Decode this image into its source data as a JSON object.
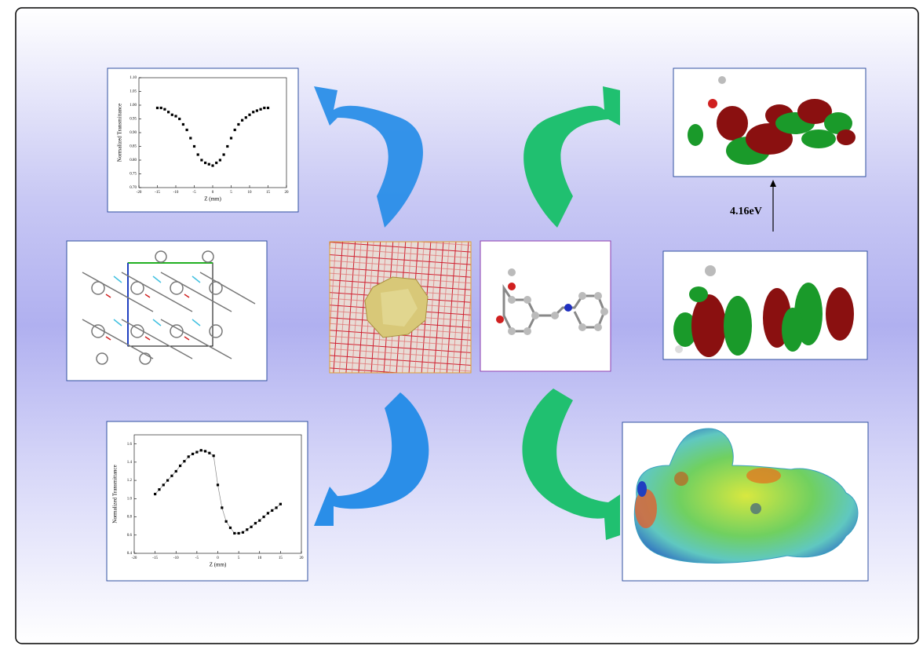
{
  "chart_data": [
    {
      "type": "scatter",
      "xlabel": "Z (mm)",
      "ylabel": "Normalized Transmittance",
      "color": "#000000",
      "x": [
        -15,
        -14,
        -13,
        -12,
        -11,
        -10,
        -9,
        -8,
        -7,
        -6,
        -5,
        -4,
        -3,
        -2,
        -1,
        0,
        1,
        2,
        3,
        4,
        5,
        6,
        7,
        8,
        9,
        10,
        11,
        12,
        13,
        14,
        15
      ],
      "values": [
        0.99,
        0.99,
        0.985,
        0.975,
        0.965,
        0.96,
        0.95,
        0.93,
        0.91,
        0.88,
        0.85,
        0.82,
        0.8,
        0.79,
        0.785,
        0.78,
        0.79,
        0.8,
        0.82,
        0.85,
        0.88,
        0.91,
        0.93,
        0.945,
        0.955,
        0.965,
        0.975,
        0.98,
        0.985,
        0.99,
        0.99
      ],
      "xlim": [
        -20,
        20
      ],
      "xticks": [
        -20,
        -15,
        -10,
        -5,
        0,
        5,
        10,
        15,
        20
      ],
      "ylim": [
        0.7,
        1.1
      ],
      "yticks": [
        {
          "value": 0.7,
          "label": "0.70"
        },
        {
          "value": 0.75,
          "label": "0.75"
        },
        {
          "value": 0.8,
          "label": "0.80"
        },
        {
          "value": 0.85,
          "label": "0.85"
        },
        {
          "value": 0.9,
          "label": "0.90"
        },
        {
          "value": 0.95,
          "label": "0.95"
        },
        {
          "value": 1.0,
          "label": "1.00"
        },
        {
          "value": 1.05,
          "label": "1.05"
        },
        {
          "value": 1.1,
          "label": "1.10"
        }
      ]
    },
    {
      "type": "line",
      "xlabel": "Z (mm)",
      "ylabel": "Normalized Transmittance",
      "color": "#000000",
      "line_color": "#888888",
      "markers": true,
      "x": [
        -15,
        -14,
        -13,
        -12,
        -11,
        -10,
        -9,
        -8,
        -7,
        -6,
        -5,
        -4,
        -3,
        -2,
        -1,
        0,
        1,
        2,
        3,
        4,
        5,
        6,
        7,
        8,
        9,
        10,
        11,
        12,
        13,
        14,
        15
      ],
      "values": [
        1.05,
        1.1,
        1.15,
        1.2,
        1.25,
        1.3,
        1.36,
        1.41,
        1.46,
        1.49,
        1.51,
        1.53,
        1.52,
        1.5,
        1.47,
        1.15,
        0.9,
        0.75,
        0.68,
        0.62,
        0.62,
        0.63,
        0.66,
        0.69,
        0.73,
        0.76,
        0.8,
        0.84,
        0.87,
        0.9,
        0.94
      ],
      "xlim": [
        -20,
        20
      ],
      "xticks": [
        -20,
        -15,
        -10,
        -5,
        0,
        5,
        10,
        15,
        20
      ],
      "ylim": [
        0.4,
        1.7
      ],
      "yticks": [
        {
          "value": 0.4,
          "label": "0.4"
        },
        {
          "value": 0.6,
          "label": "0.6"
        },
        {
          "value": 0.8,
          "label": "0.8"
        },
        {
          "value": 1.0,
          "label": "1.0"
        },
        {
          "value": 1.2,
          "label": "1.2"
        },
        {
          "value": 1.4,
          "label": "1.4"
        },
        {
          "value": 1.6,
          "label": "1.6"
        }
      ]
    }
  ],
  "energy_gap_label": "4.16eV"
}
